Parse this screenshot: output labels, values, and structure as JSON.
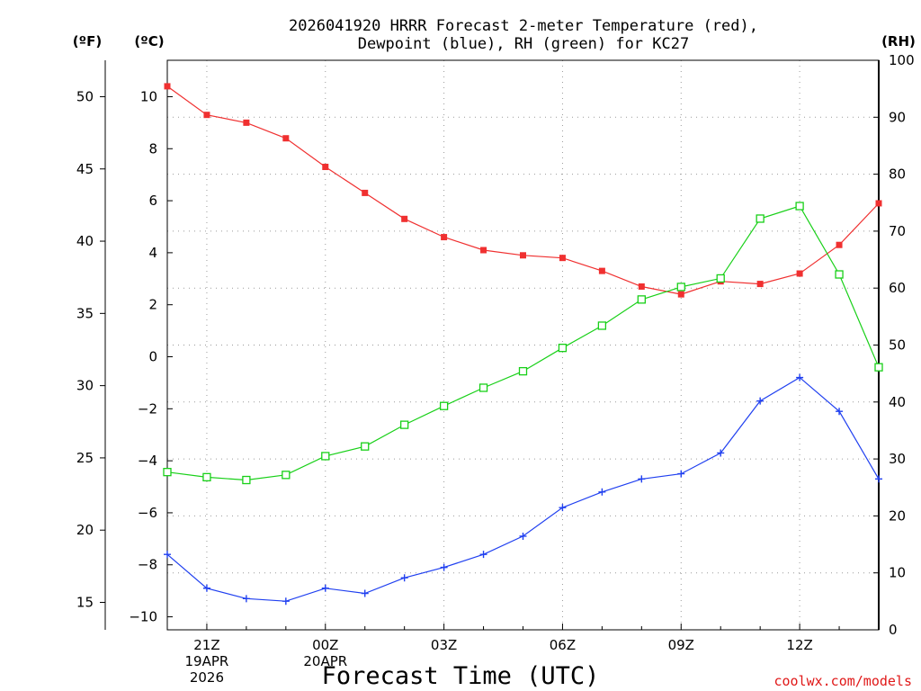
{
  "chart_data": {
    "type": "line",
    "title_line1": "2026041920 HRRR Forecast 2-meter Temperature (red),",
    "title_line2": "Dewpoint (blue), RH (green) for KC27",
    "unit_f": "(ºF)",
    "unit_c": "(ºC)",
    "unit_rh": "(RH)",
    "xlabel": "Forecast Time (UTC)",
    "credit": "coolwx.com/models",
    "xlim": [
      0,
      18
    ],
    "ylim_c": [
      -10.5,
      11.4
    ],
    "ylim_rh": [
      0,
      100
    ],
    "grid": true,
    "c_ticks": [
      -10,
      -8,
      -6,
      -4,
      -2,
      0,
      2,
      4,
      6,
      8,
      10
    ],
    "c_tick_labels": [
      "−10",
      "−8",
      "−6",
      "−4",
      "−2",
      "0",
      "2",
      "4",
      "6",
      "8",
      "10"
    ],
    "f_ticks": [
      15,
      20,
      25,
      30,
      35,
      40,
      45,
      50
    ],
    "f_tick_labels": [
      "15",
      "20",
      "25",
      "30",
      "35",
      "40",
      "45",
      "50"
    ],
    "rh_ticks": [
      0,
      10,
      20,
      30,
      40,
      50,
      60,
      70,
      80,
      90,
      100
    ],
    "rh_tick_labels": [
      "0",
      "10",
      "20",
      "30",
      "40",
      "50",
      "60",
      "70",
      "80",
      "90",
      "100"
    ],
    "x_ticks": [
      {
        "x": 1,
        "lines": [
          "21Z",
          "19APR",
          "2026"
        ]
      },
      {
        "x": 4,
        "lines": [
          "00Z",
          "20APR"
        ]
      },
      {
        "x": 7,
        "lines": [
          "03Z"
        ]
      },
      {
        "x": 10,
        "lines": [
          "06Z"
        ]
      },
      {
        "x": 13,
        "lines": [
          "09Z"
        ]
      },
      {
        "x": 16,
        "lines": [
          "12Z"
        ]
      }
    ],
    "x": [
      0,
      1,
      2,
      3,
      4,
      5,
      6,
      7,
      8,
      9,
      10,
      11,
      12,
      13,
      14,
      15,
      16,
      17,
      18
    ],
    "series": [
      {
        "name": "Temperature",
        "axis": "c",
        "color": "#f03030",
        "marker": "filled-square",
        "values": [
          10.4,
          9.3,
          9.0,
          8.4,
          7.3,
          6.3,
          5.3,
          4.6,
          4.1,
          3.9,
          3.8,
          3.3,
          2.7,
          2.4,
          2.9,
          2.8,
          3.2,
          4.3,
          5.9
        ]
      },
      {
        "name": "Dewpoint",
        "axis": "c",
        "color": "#2040f0",
        "marker": "plus",
        "values": [
          -7.6,
          -8.9,
          -9.3,
          -9.4,
          -8.9,
          -9.1,
          -8.5,
          -8.1,
          -7.6,
          -6.9,
          -5.8,
          -5.2,
          -4.7,
          -4.5,
          -3.7,
          -1.7,
          -0.8,
          -2.1,
          -4.7
        ]
      },
      {
        "name": "RH",
        "axis": "rh",
        "color": "#18d018",
        "marker": "open-square",
        "values": [
          27.7,
          26.8,
          26.3,
          27.2,
          30.5,
          32.2,
          36.0,
          39.3,
          42.5,
          45.4,
          49.5,
          53.4,
          58.0,
          60.2,
          61.7,
          72.2,
          74.4,
          62.4,
          46.1
        ]
      }
    ]
  }
}
